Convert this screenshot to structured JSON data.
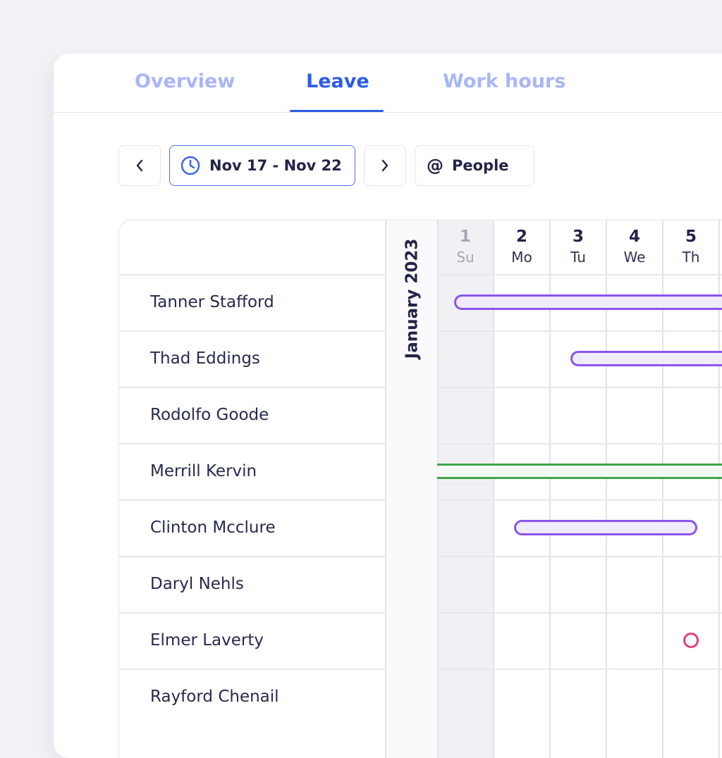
{
  "tabs": [
    {
      "label": "Overview",
      "active": false
    },
    {
      "label": "Leave",
      "active": true
    },
    {
      "label": "Work hours",
      "active": false
    }
  ],
  "toolbar": {
    "prev_icon": "chevron-left-icon",
    "date_range": "Nov 17 - Nov 22",
    "date_icon": "clock-icon",
    "next_icon": "chevron-right-icon",
    "people_symbol": "@",
    "people_label": "People"
  },
  "calendar": {
    "month": "January 2023",
    "days": [
      {
        "num": "1",
        "name": "Su",
        "weekend": true
      },
      {
        "num": "2",
        "name": "Mo",
        "weekend": false
      },
      {
        "num": "3",
        "name": "Tu",
        "weekend": false
      },
      {
        "num": "4",
        "name": "We",
        "weekend": false
      },
      {
        "num": "5",
        "name": "Th",
        "weekend": false
      }
    ]
  },
  "people": [
    "Tanner Stafford",
    "Thad Eddings",
    "Rodolfo Goode",
    "Merrill Kervin",
    "Clinton Mcclure",
    "Daryl Nehls",
    "Elmer Laverty",
    "Rayford Chenail"
  ],
  "colors": {
    "accent": "#2f5bea",
    "tab_inactive": "#a9b6f6",
    "leave": "#8a55ec",
    "leave_fill": "#f0ebfd",
    "work": "#3fa54c",
    "marker": "#e0407f"
  }
}
